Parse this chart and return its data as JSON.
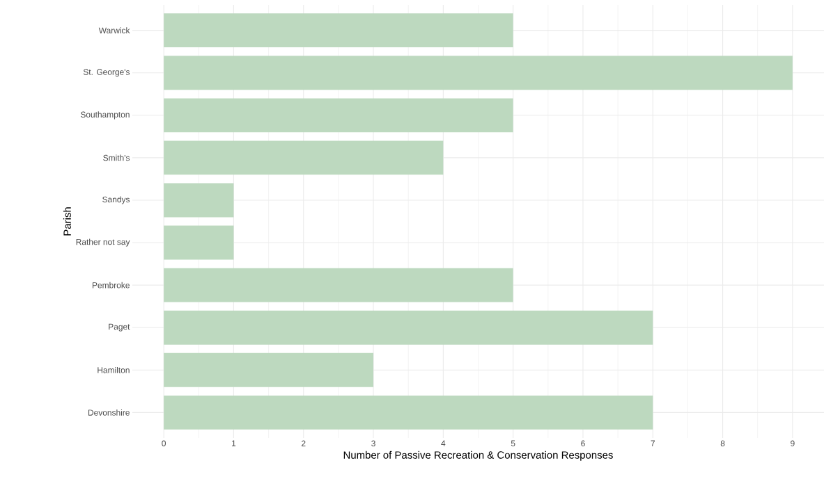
{
  "chart_data": {
    "type": "bar",
    "orientation": "horizontal",
    "xlabel": "Number of Passive Recreation & Conservation Responses",
    "ylabel": "Parish",
    "categories": [
      "Warwick",
      "St. George's",
      "Southampton",
      "Smith's",
      "Sandys",
      "Rather not say",
      "Pembroke",
      "Paget",
      "Hamilton",
      "Devonshire"
    ],
    "values": [
      5,
      9,
      5,
      4,
      1,
      1,
      5,
      7,
      3,
      7
    ],
    "color": "#bdd9bf",
    "xlim": [
      -0.45,
      9.45
    ],
    "xticks": [
      0,
      1,
      2,
      3,
      4,
      5,
      6,
      7,
      8,
      9
    ],
    "grid": true
  }
}
